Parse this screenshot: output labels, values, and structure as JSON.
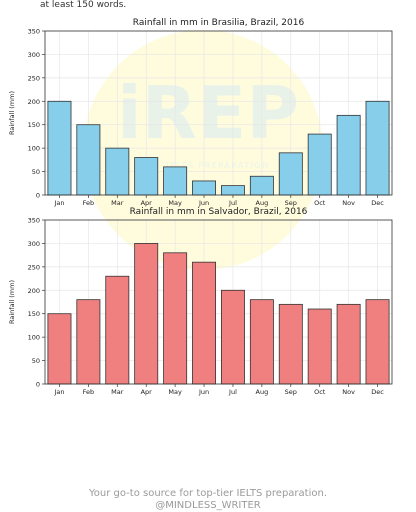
{
  "header": {
    "text": "at least 150 words."
  },
  "watermark": {
    "text": "iREP",
    "subtext": "IELTS PREPARATION"
  },
  "footer": {
    "line1": "Your go-to source for top-tier IELTS preparation.",
    "line2": "@MINDLESS_WRITER"
  },
  "colors": {
    "brasilia_bar": "#87CEEB",
    "salvador_bar": "#F08080",
    "bar_edge": "#333333",
    "grid": "#e6e6e6",
    "watermark": "#cfe8f5"
  },
  "chart_data": [
    {
      "type": "bar",
      "title": "Rainfall in mm in Brasilia, Brazil, 2016",
      "xlabel": "",
      "ylabel": "Rainfall (mm)",
      "categories": [
        "Jan",
        "Feb",
        "Mar",
        "Apr",
        "May",
        "Jun",
        "Jul",
        "Aug",
        "Sep",
        "Oct",
        "Nov",
        "Dec"
      ],
      "values": [
        200,
        150,
        100,
        80,
        60,
        30,
        20,
        40,
        90,
        130,
        170,
        200
      ],
      "ylim": [
        0,
        350
      ],
      "yticks": [
        0,
        50,
        100,
        150,
        200,
        250,
        300,
        350
      ],
      "grid": true
    },
    {
      "type": "bar",
      "title": "Rainfall in mm in Salvador, Brazil, 2016",
      "xlabel": "",
      "ylabel": "Rainfall (mm)",
      "categories": [
        "Jan",
        "Feb",
        "Mar",
        "Apr",
        "May",
        "Jun",
        "Jul",
        "Aug",
        "Sep",
        "Oct",
        "Nov",
        "Dec"
      ],
      "values": [
        150,
        180,
        230,
        300,
        280,
        260,
        200,
        180,
        170,
        160,
        170,
        180
      ],
      "ylim": [
        0,
        350
      ],
      "yticks": [
        0,
        50,
        100,
        150,
        200,
        250,
        300,
        350
      ],
      "grid": true
    }
  ]
}
